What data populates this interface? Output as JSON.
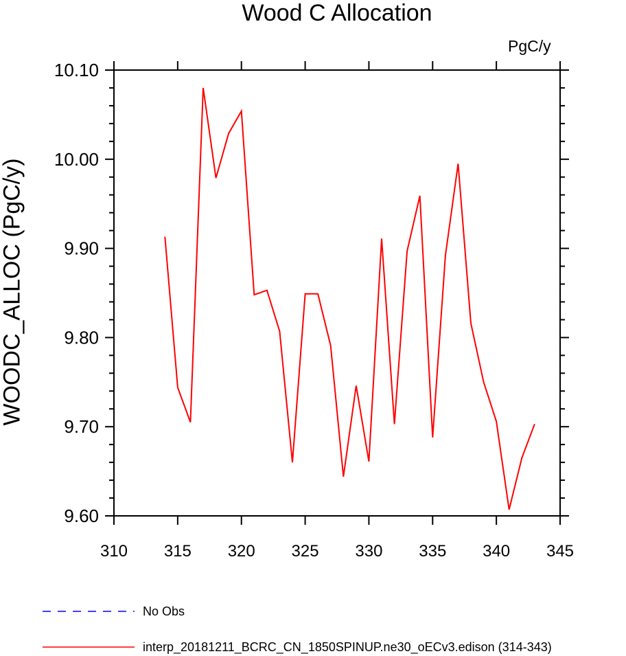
{
  "chart_data": {
    "type": "line",
    "title": "Wood C Allocation",
    "units": "PgC/y",
    "xlabel": "",
    "ylabel": "WOODC_ALLOC  (PgC/y)",
    "xlim": [
      310,
      345
    ],
    "ylim": [
      9.6,
      10.1
    ],
    "xticks": [
      310,
      315,
      320,
      325,
      330,
      335,
      340,
      345
    ],
    "yticks": [
      9.6,
      9.7,
      9.8,
      9.9,
      10.0,
      10.1
    ],
    "ytick_labels": [
      "9.60",
      "9.70",
      "9.80",
      "9.90",
      "10.00",
      "10.10"
    ],
    "colors": {
      "model": "#ff0000",
      "obs": "#0000ff",
      "axis": "#000000"
    },
    "series": [
      {
        "name": "interp_20181211_BCRC_CN_1850SPINUP.ne30_oECv3.edison (314-343)",
        "style": "solid",
        "x": [
          314,
          315,
          316,
          317,
          318,
          319,
          320,
          321,
          322,
          323,
          324,
          325,
          326,
          327,
          328,
          329,
          330,
          331,
          332,
          333,
          334,
          335,
          336,
          337,
          338,
          339,
          340,
          341,
          342,
          343
        ],
        "values": [
          9.913,
          9.744,
          9.705,
          10.08,
          9.979,
          10.029,
          10.054,
          9.848,
          9.853,
          9.807,
          9.66,
          9.849,
          9.849,
          9.791,
          9.644,
          9.746,
          9.661,
          9.911,
          9.703,
          9.897,
          9.959,
          9.688,
          9.892,
          9.995,
          9.816,
          9.75,
          9.706,
          9.607,
          9.665,
          9.703
        ]
      }
    ],
    "legend": [
      {
        "label": "No Obs",
        "style": "dashed"
      },
      {
        "label": "interp_20181211_BCRC_CN_1850SPINUP.ne30_oECv3.edison (314-343)",
        "style": "solid"
      }
    ],
    "legend_position": "bottom-left"
  }
}
